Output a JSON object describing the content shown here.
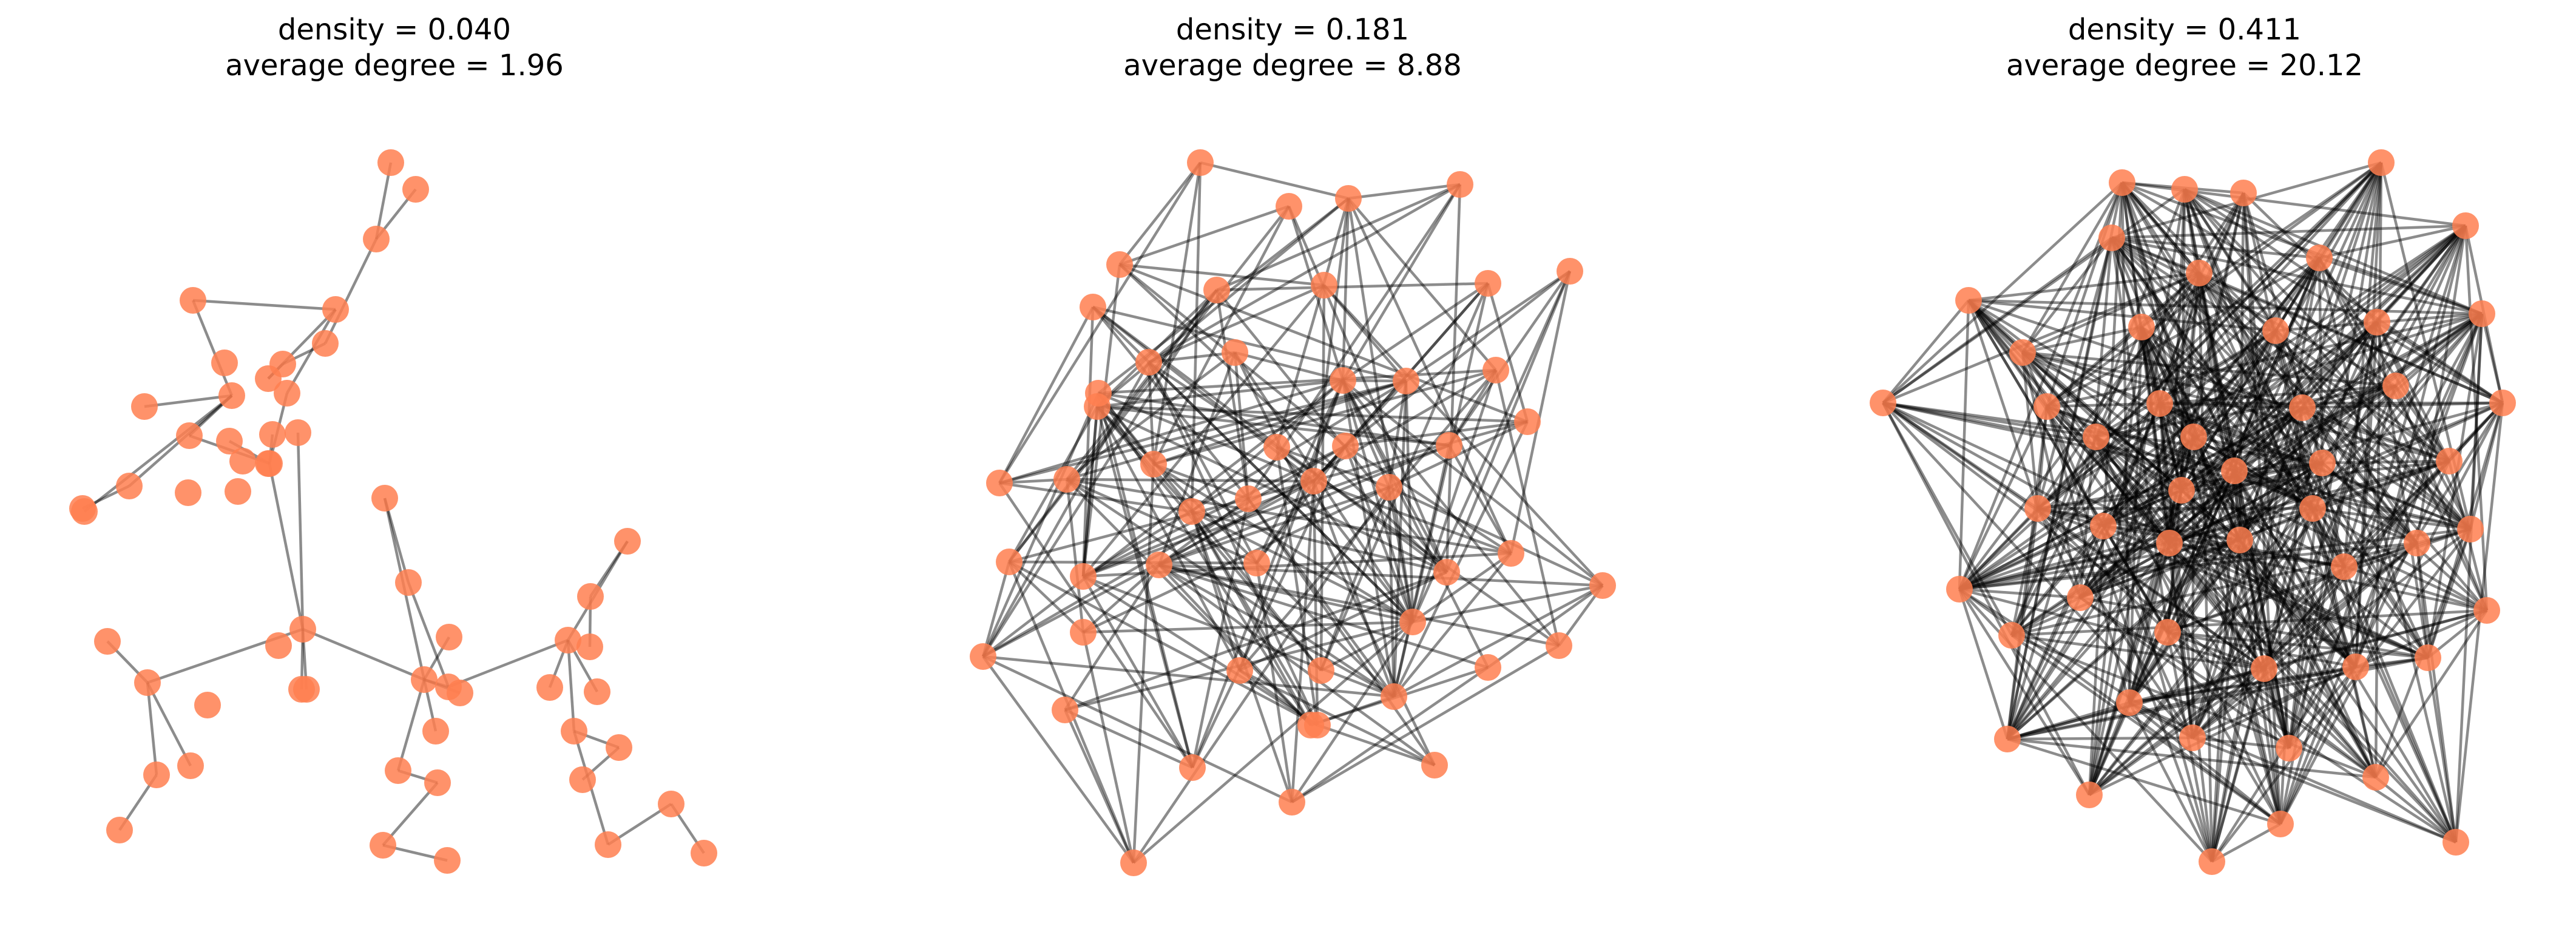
{
  "colors": {
    "node": "#ff7f50",
    "edge": "#000000",
    "background": "#ffffff"
  },
  "panels": [
    {
      "title_line1": "density = 0.040",
      "title_line2": "average degree = 1.96",
      "nodes": 50,
      "density": 0.04,
      "average_degree": 1.96,
      "structure": "tree"
    },
    {
      "title_line1": "density = 0.181",
      "title_line2": "average degree = 8.88",
      "nodes": 50,
      "density": 0.181,
      "average_degree": 8.88,
      "structure": "random"
    },
    {
      "title_line1": "density = 0.411",
      "title_line2": "average degree = 20.12",
      "nodes": 50,
      "density": 0.411,
      "average_degree": 20.12,
      "structure": "random"
    }
  ]
}
